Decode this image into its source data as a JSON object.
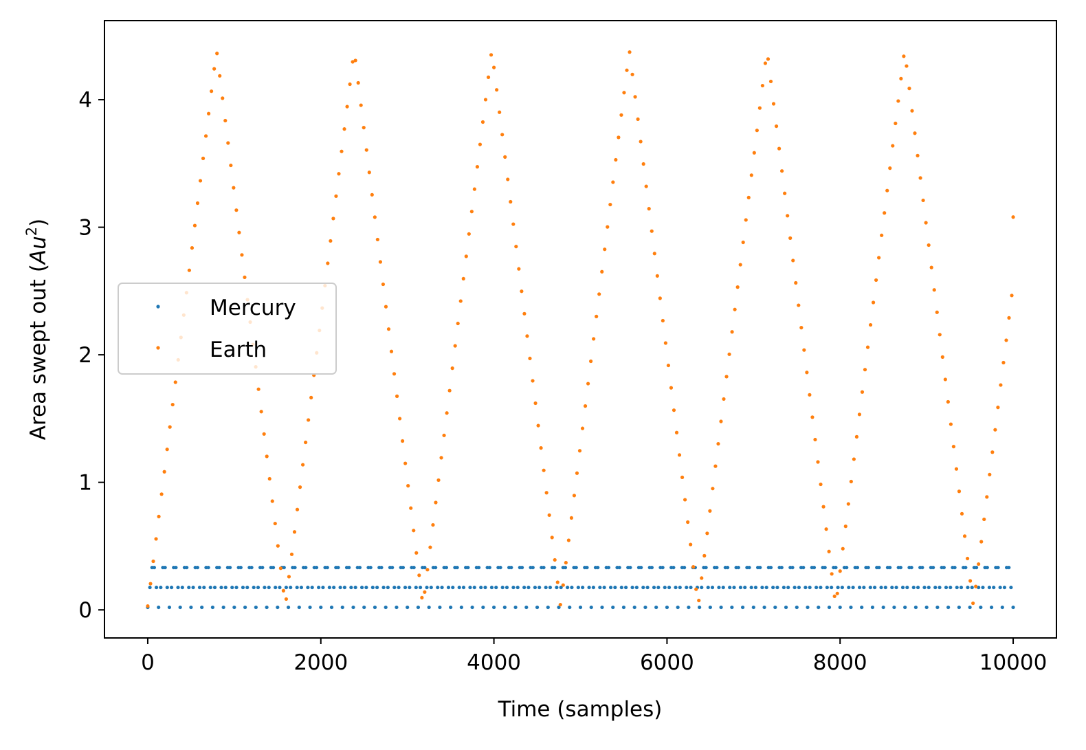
{
  "chart_data": {
    "type": "scatter",
    "title": "",
    "xlabel": "Time (samples)",
    "ylabel_prefix": "Area swept out (",
    "ylabel_unit_base": "Au",
    "ylabel_unit_exp": "2",
    "ylabel_suffix": ")",
    "xlim": [
      -500,
      10500
    ],
    "ylim": [
      -0.22,
      4.62
    ],
    "x_ticks": [
      0,
      2000,
      4000,
      6000,
      8000,
      10000
    ],
    "x_tick_labels": [
      "0",
      "2000",
      "4000",
      "6000",
      "8000",
      "10000"
    ],
    "y_ticks": [
      0,
      1,
      2,
      3,
      4
    ],
    "y_tick_labels": [
      "0",
      "1",
      "2",
      "3",
      "4"
    ],
    "grid": false,
    "legend_position": "center-left",
    "series": [
      {
        "name": "Mercury",
        "color": "#1f77b4",
        "marker": "point",
        "x_range": [
          0,
          10000
        ],
        "sample_step": 25,
        "period_samples": 125,
        "y_min": 0.02,
        "y_max": 0.41,
        "waveform": "triangle"
      },
      {
        "name": "Earth",
        "color": "#ff7f0e",
        "marker": "point",
        "x_range": [
          0,
          10000
        ],
        "sample_step": 32,
        "period_samples": 1590,
        "y_min": 0.03,
        "y_max": 4.39,
        "waveform": "triangle",
        "end_value": 3.08
      }
    ]
  }
}
